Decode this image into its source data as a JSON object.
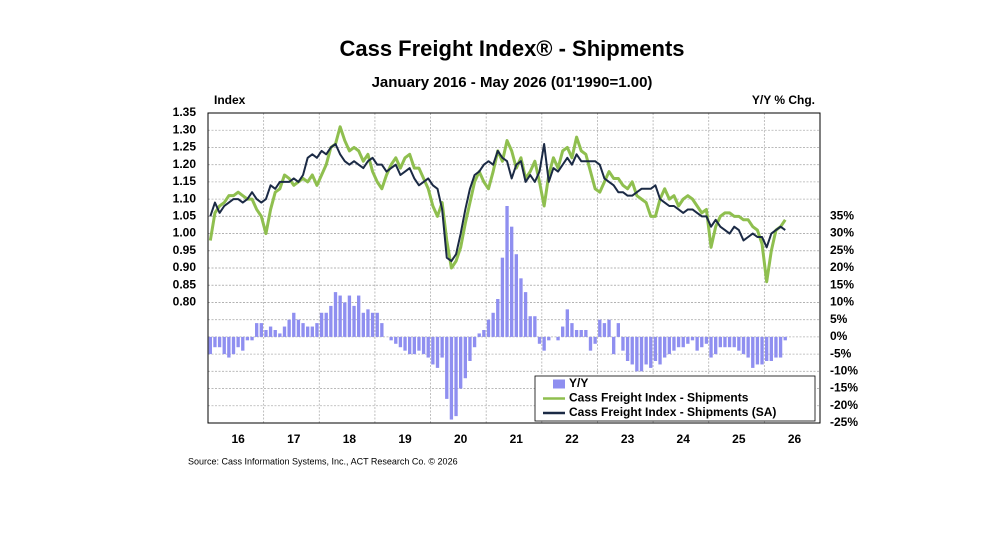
{
  "chart_data": {
    "type": "combo",
    "title": "Cass Freight Index® - Shipments",
    "subtitle": "January 2016 - May 2026 (01'1990=1.00)",
    "y_label": "Index",
    "y2_label": "Y/Y % Chg.",
    "source": "Source: Cass Information Systems, Inc., ACT Research Co. © 2026",
    "categories": [
      null,
      null,
      null,
      null,
      null,
      null,
      "16",
      null,
      null,
      null,
      null,
      null,
      null,
      null,
      null,
      null,
      null,
      null,
      "17",
      null,
      null,
      null,
      null,
      null,
      null,
      null,
      null,
      null,
      null,
      null,
      "18",
      null,
      null,
      null,
      null,
      null,
      null,
      null,
      null,
      null,
      null,
      null,
      "19",
      null,
      null,
      null,
      null,
      null,
      null,
      null,
      null,
      null,
      null,
      null,
      "20",
      null,
      null,
      null,
      null,
      null,
      null,
      null,
      null,
      null,
      null,
      null,
      "21",
      null,
      null,
      null,
      null,
      null,
      null,
      null,
      null,
      null,
      null,
      null,
      "22",
      null,
      null,
      null,
      null,
      null,
      null,
      null,
      null,
      null,
      null,
      null,
      "23",
      null,
      null,
      null,
      null,
      null,
      null,
      null,
      null,
      null,
      null,
      null,
      "24",
      null,
      null,
      null,
      null,
      null,
      null,
      null,
      null,
      null,
      null,
      null,
      "25",
      null,
      null,
      null,
      null,
      null,
      null,
      null,
      null,
      null,
      null,
      null,
      "26",
      null,
      null,
      null,
      null,
      null
    ],
    "series": [
      {
        "name": "Y/Y",
        "type": "bar",
        "axis": "y2",
        "color": "#8f8ff0",
        "values": [
          -5,
          -3,
          -3,
          -5,
          -6,
          -5,
          -3,
          -4,
          -1,
          -1,
          4,
          4,
          2,
          3,
          2,
          1,
          3,
          5,
          7,
          5,
          4,
          3,
          3,
          4,
          7,
          7,
          9,
          13,
          12,
          10,
          12,
          9,
          12,
          7,
          8,
          7,
          7,
          4,
          0,
          -1,
          -2,
          -3,
          -4,
          -5,
          -5,
          -4,
          -5,
          -6,
          -8,
          -9,
          -6,
          -18,
          -24,
          -23,
          -15,
          -12,
          -7,
          -3,
          1,
          2,
          5,
          7,
          11,
          23,
          38,
          32,
          24,
          17,
          13,
          6,
          6,
          -2,
          -4,
          -1,
          0,
          -1,
          3,
          8,
          4,
          2,
          2,
          2,
          -4,
          -2,
          5,
          4,
          5,
          -5,
          4,
          -4,
          -7,
          -8,
          -10,
          -10,
          -8,
          -9,
          -7,
          -8,
          -6,
          -5,
          -4,
          -3,
          -3,
          -2,
          -1,
          -4,
          -3,
          -2,
          -6,
          -5,
          -3,
          -3,
          -3,
          -3,
          -4,
          -5,
          -6,
          -9,
          -8,
          -8,
          -7,
          -7,
          -6,
          -6,
          -1,
          null,
          null,
          null,
          null,
          null,
          null,
          null
        ]
      },
      {
        "name": "Cass Freight Index - Shipments",
        "type": "line",
        "color": "#8fbf4f",
        "values": [
          0.98,
          1.06,
          1.08,
          1.09,
          1.11,
          1.11,
          1.12,
          1.11,
          1.1,
          1.1,
          1.07,
          1.05,
          1.0,
          1.07,
          1.12,
          1.13,
          1.17,
          1.16,
          1.14,
          1.15,
          1.16,
          1.15,
          1.17,
          1.14,
          1.17,
          1.2,
          1.25,
          1.26,
          1.31,
          1.27,
          1.24,
          1.25,
          1.24,
          1.21,
          1.23,
          1.18,
          1.15,
          1.13,
          1.17,
          1.2,
          1.22,
          1.19,
          1.22,
          1.23,
          1.19,
          1.19,
          1.16,
          1.13,
          1.08,
          1.05,
          1.09,
          0.98,
          0.9,
          0.92,
          0.96,
          1.03,
          1.09,
          1.15,
          1.18,
          1.15,
          1.13,
          1.18,
          1.24,
          1.21,
          1.27,
          1.24,
          1.19,
          1.22,
          1.16,
          1.18,
          1.21,
          1.15,
          1.08,
          1.17,
          1.22,
          1.19,
          1.24,
          1.25,
          1.22,
          1.28,
          1.24,
          1.23,
          1.18,
          1.13,
          1.12,
          1.15,
          1.18,
          1.16,
          1.16,
          1.14,
          1.13,
          1.15,
          1.11,
          1.1,
          1.09,
          1.05,
          1.05,
          1.1,
          1.13,
          1.1,
          1.11,
          1.08,
          1.1,
          1.11,
          1.1,
          1.08,
          1.06,
          1.07,
          0.96,
          1.02,
          1.05,
          1.06,
          1.06,
          1.05,
          1.05,
          1.04,
          1.04,
          1.02,
          1.01,
          0.97,
          0.86,
          0.95,
          1.01,
          1.02,
          1.04,
          null,
          null,
          null,
          null,
          null,
          null,
          null
        ]
      },
      {
        "name": "Cass Freight Index - Shipments (SA)",
        "type": "line",
        "color": "#1b2a45",
        "values": [
          1.05,
          1.09,
          1.06,
          1.08,
          1.09,
          1.1,
          1.1,
          1.09,
          1.1,
          1.12,
          1.1,
          1.09,
          1.1,
          1.14,
          1.13,
          1.15,
          1.15,
          1.15,
          1.16,
          1.15,
          1.17,
          1.22,
          1.23,
          1.22,
          1.24,
          1.23,
          1.25,
          1.26,
          1.23,
          1.21,
          1.2,
          1.21,
          1.2,
          1.19,
          1.21,
          1.22,
          1.2,
          1.2,
          1.18,
          1.19,
          1.2,
          1.17,
          1.18,
          1.19,
          1.16,
          1.14,
          1.15,
          1.16,
          1.14,
          1.13,
          1.07,
          0.93,
          0.92,
          0.94,
          1.0,
          1.07,
          1.13,
          1.17,
          1.18,
          1.2,
          1.21,
          1.2,
          1.24,
          1.22,
          1.21,
          1.16,
          1.2,
          1.21,
          1.15,
          1.17,
          1.15,
          1.18,
          1.26,
          1.15,
          1.19,
          1.18,
          1.2,
          1.22,
          1.2,
          1.23,
          1.21,
          1.21,
          1.21,
          1.21,
          1.2,
          1.16,
          1.15,
          1.14,
          1.12,
          1.12,
          1.11,
          1.11,
          1.12,
          1.13,
          1.13,
          1.13,
          1.14,
          1.1,
          1.09,
          1.08,
          1.08,
          1.07,
          1.06,
          1.07,
          1.07,
          1.06,
          1.05,
          1.05,
          1.02,
          1.04,
          1.02,
          1.01,
          1.0,
          1.02,
          1.01,
          0.98,
          0.99,
          1.0,
          0.99,
          0.99,
          0.96,
          1.0,
          1.01,
          1.02,
          1.01,
          null,
          null,
          null,
          null,
          null,
          null,
          null
        ]
      }
    ],
    "ylim": [
      0.45,
      1.35
    ],
    "yticks": [
      {
        "value": 0.8,
        "label": "0.80"
      },
      0.85,
      {
        "value": 0.9,
        "label": "0.90"
      },
      0.95,
      {
        "value": 1.0,
        "label": "1.00"
      },
      1.05,
      {
        "value": 1.1,
        "label": "1.10"
      },
      1.15,
      {
        "value": 1.2,
        "label": "1.20"
      },
      1.25,
      {
        "value": 1.3,
        "label": "1.30"
      },
      1.35
    ],
    "y2lim": [
      -25,
      65
    ],
    "y2ticks": [
      {
        "value": -25,
        "label": "-25%"
      },
      {
        "value": -20,
        "label": "-20%"
      },
      {
        "value": -15,
        "label": "-15%"
      },
      {
        "value": -10,
        "label": "-10%"
      },
      {
        "value": -5,
        "label": "-5%"
      },
      {
        "value": 0,
        "label": "0%"
      },
      {
        "value": 5,
        "label": "5%"
      },
      {
        "value": 10,
        "label": "10%"
      },
      {
        "value": 15,
        "label": "15%"
      },
      {
        "value": 20,
        "label": "20%"
      },
      {
        "value": 25,
        "label": "25%"
      },
      {
        "value": 30,
        "label": "30%"
      },
      {
        "value": 35,
        "label": "35%"
      }
    ],
    "grid": true,
    "legend": "lower right"
  }
}
